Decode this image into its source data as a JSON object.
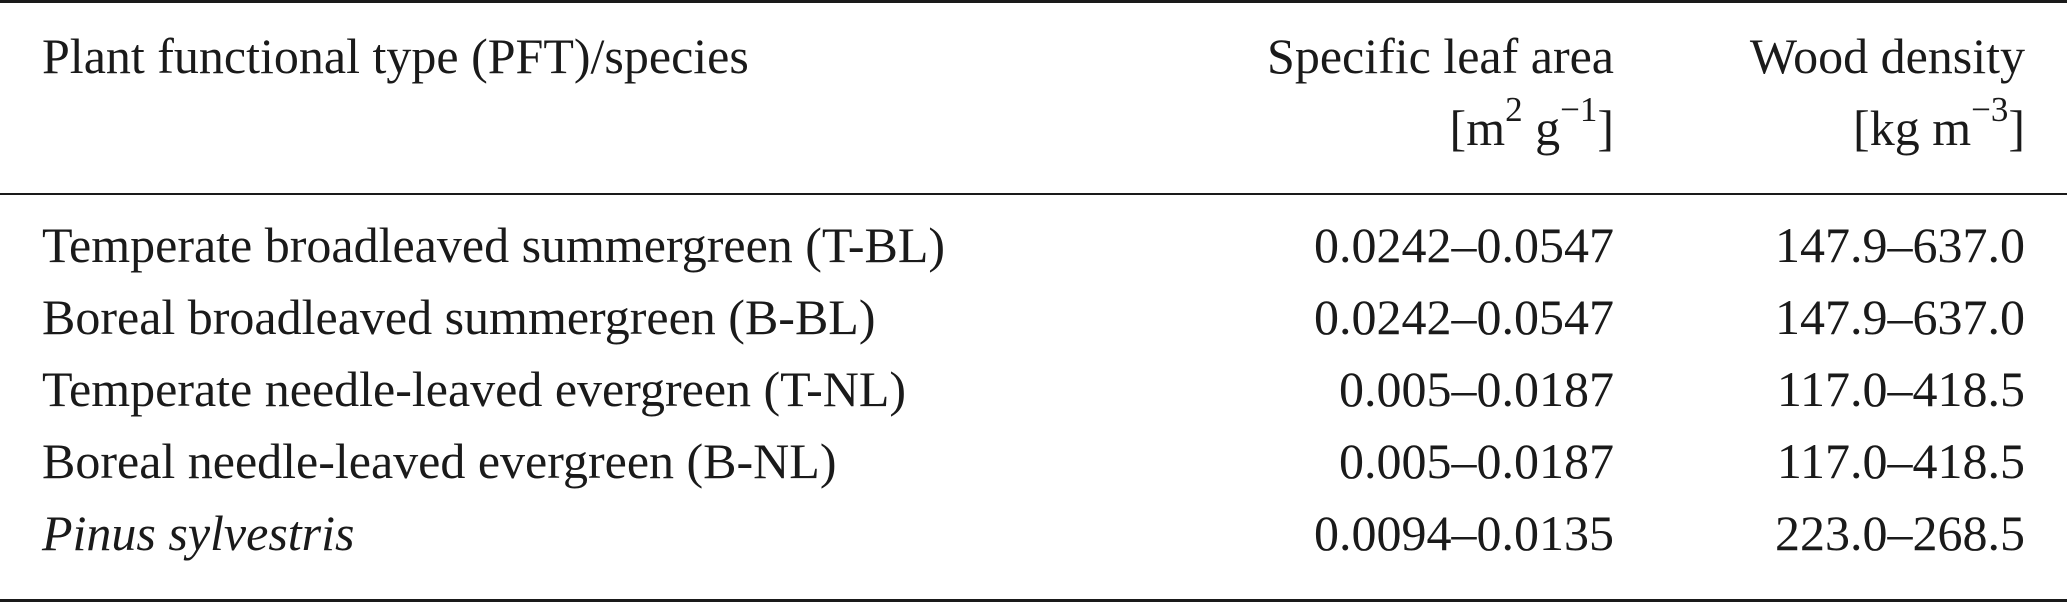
{
  "header": {
    "col1": "Plant functional type (PFT)/species",
    "col2_line1": "Specific leaf area",
    "col2_unit_pre": "[m",
    "col2_unit_sup1": "2",
    "col2_unit_mid": " g",
    "col2_unit_sup2": "−1",
    "col2_unit_post": "]",
    "col3_line1": "Wood density",
    "col3_unit_pre": "[kg m",
    "col3_unit_sup": "−3",
    "col3_unit_post": "]"
  },
  "rows": [
    {
      "pft": "Temperate broadleaved summergreen (T-BL)",
      "sla": "0.0242–0.0547",
      "wood": "147.9–637.0"
    },
    {
      "pft": "Boreal broadleaved summergreen (B-BL)",
      "sla": "0.0242–0.0547",
      "wood": "147.9–637.0"
    },
    {
      "pft": "Temperate needle-leaved evergreen (T-NL)",
      "sla": "0.005–0.0187",
      "wood": "117.0–418.5"
    },
    {
      "pft": "Boreal needle-leaved evergreen (B-NL)",
      "sla": "0.005–0.0187",
      "wood": "117.0–418.5"
    },
    {
      "pft": "Pinus sylvestris",
      "sla": "0.0094–0.0135",
      "wood": "223.0–268.5"
    }
  ]
}
